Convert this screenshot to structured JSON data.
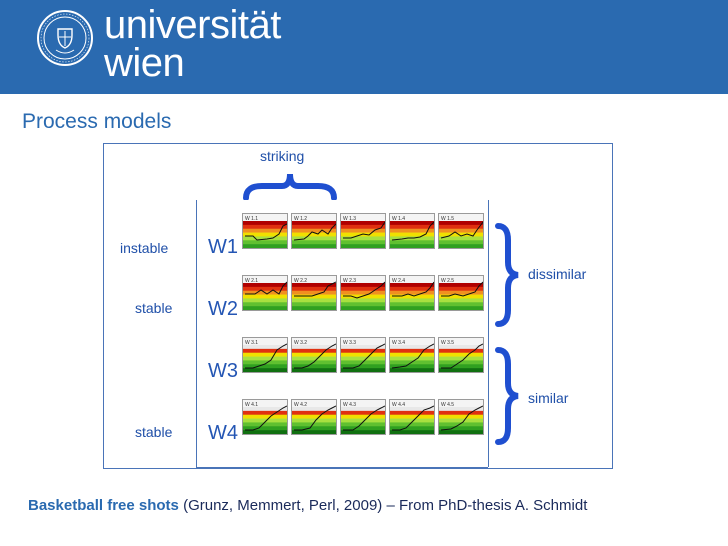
{
  "header": {
    "logo_line1": "universität",
    "logo_line2": "wien",
    "brand_color": "#2a6ab0"
  },
  "slide_title": "Process models",
  "diagram": {
    "striking_label": "striking",
    "dissimilar_label": "dissimilar",
    "similar_label": "similar",
    "stability": [
      "instable",
      "stable",
      "",
      "stable"
    ],
    "rows": [
      {
        "name": "W1",
        "cells": [
          "W 1.1",
          "W 1.2",
          "W 1.3",
          "W 1.4",
          "W 1.5"
        ]
      },
      {
        "name": "W2",
        "cells": [
          "W 2.1",
          "W 2.2",
          "W 2.3",
          "W 2.4",
          "W 2.5"
        ]
      },
      {
        "name": "W3",
        "cells": [
          "W 3.1",
          "W 3.2",
          "W 3.3",
          "W 3.4",
          "W 3.5"
        ]
      },
      {
        "name": "W4",
        "cells": [
          "W 4.1",
          "W 4.2",
          "W 4.3",
          "W 4.4",
          "W 4.5"
        ]
      }
    ]
  },
  "caption": {
    "bold": "Basketball free shots",
    "rest": " (Grunz, Memmert, Perl, 2009) – From PhD-thesis A. Schmidt"
  }
}
